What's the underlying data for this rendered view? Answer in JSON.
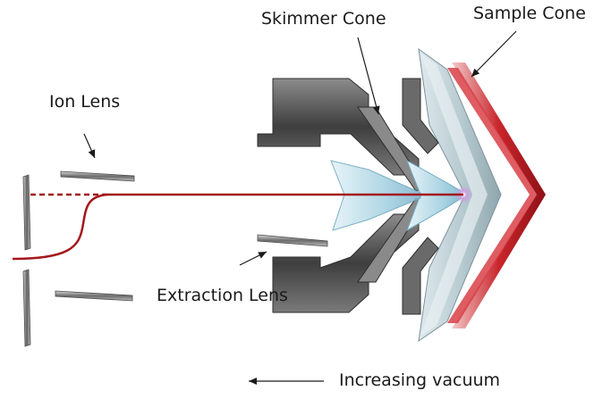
{
  "labels": {
    "skimmer_cone": "Skimmer Cone",
    "sample_cone": "Sample Cone",
    "ion_lens": "Ion Lens",
    "extraction_lens": "Extraction Lens",
    "increasing_vacuum": "Increasing vacuum"
  },
  "colors": {
    "ion_beam": "#a3171b",
    "cone_metal_dark": "#4a4a4a",
    "cone_metal_light": "#9a9a9a",
    "glass_blue": "#a9d3e3",
    "sample_cone_red": "#c8262c",
    "text": "#1a1a1a",
    "arrow": "#1a1a1a"
  }
}
